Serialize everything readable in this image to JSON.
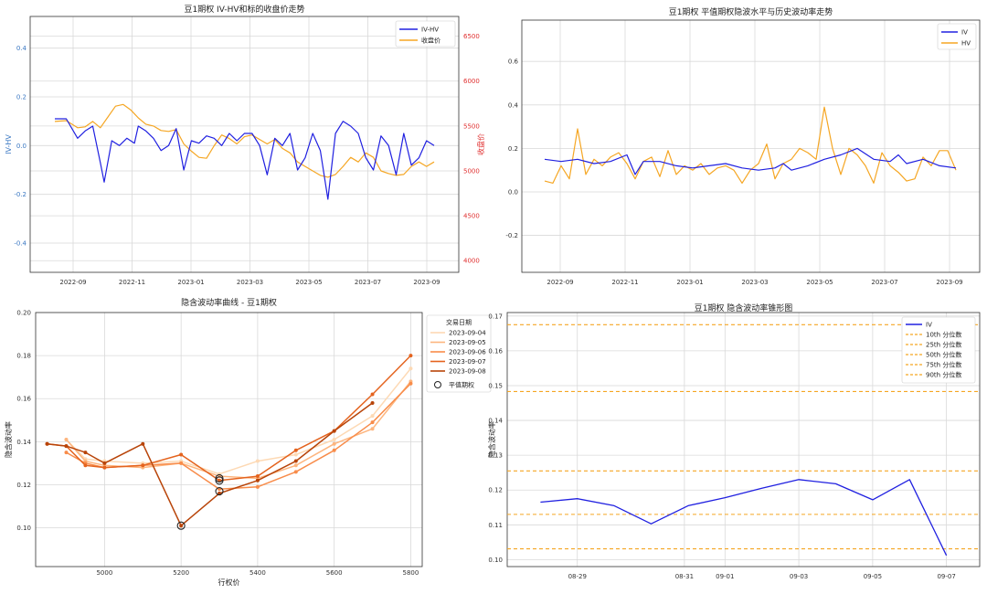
{
  "chart_data": [
    {
      "type": "line",
      "title": "豆1期权 IV-HV和标的收盘价走势",
      "ylabel": "IV-HV",
      "y2label": "收盘价",
      "ylim": [
        -0.52,
        0.53
      ],
      "y2lim": [
        3870,
        6720
      ],
      "yticks": [
        "0.4",
        "0.2",
        "0.0",
        "-0.2",
        "-0.4"
      ],
      "y2ticks": [
        "6500",
        "6000",
        "5500",
        "5000",
        "4500",
        "4000"
      ],
      "xticks": [
        "2022-09",
        "2022-11",
        "2023-01",
        "2023-03",
        "2023-05",
        "2023-07",
        "2023-09"
      ],
      "legend": [
        "IV-HV",
        "收盘价"
      ],
      "colors": {
        "ivhv": "#2020e0",
        "close": "#f5a623",
        "right_axis": "#e03030",
        "left_axis": "#3b78c3"
      },
      "series": [
        {
          "name": "IV-HV",
          "axis": "left",
          "x": [
            0,
            3,
            6,
            8,
            10,
            12,
            13,
            15,
            17,
            19,
            21,
            22,
            24,
            26,
            28,
            30,
            32,
            34,
            36,
            38,
            40,
            42,
            44,
            46,
            48,
            50,
            52,
            54,
            56,
            58,
            60,
            62,
            64,
            66,
            68,
            70,
            72,
            74,
            76,
            78,
            80,
            82,
            84,
            86,
            88,
            90,
            92,
            94,
            96,
            98,
            100
          ],
          "values": [
            0.11,
            0.11,
            0.03,
            0.06,
            0.08,
            -0.07,
            -0.15,
            0.02,
            0.0,
            0.03,
            0.01,
            0.08,
            0.06,
            0.03,
            -0.02,
            0.0,
            0.07,
            -0.1,
            0.02,
            0.01,
            0.04,
            0.03,
            0.0,
            0.05,
            0.02,
            0.05,
            0.05,
            0.0,
            -0.12,
            0.03,
            0.0,
            0.05,
            -0.1,
            -0.05,
            0.05,
            -0.02,
            -0.22,
            0.05,
            0.1,
            0.08,
            0.05,
            -0.05,
            -0.1,
            0.04,
            0.0,
            -0.12,
            0.05,
            -0.08,
            -0.05,
            0.02,
            0.0
          ]
        },
        {
          "name": "收盘价",
          "axis": "right",
          "x": [
            0,
            3,
            6,
            8,
            10,
            12,
            14,
            16,
            18,
            20,
            22,
            24,
            26,
            28,
            30,
            32,
            34,
            36,
            38,
            40,
            42,
            44,
            46,
            48,
            50,
            52,
            54,
            56,
            58,
            60,
            62,
            64,
            66,
            68,
            70,
            72,
            74,
            76,
            78,
            80,
            82,
            84,
            86,
            88,
            90,
            92,
            94,
            96,
            98,
            100
          ],
          "values": [
            5550,
            5560,
            5480,
            5490,
            5550,
            5480,
            5600,
            5720,
            5740,
            5680,
            5590,
            5520,
            5500,
            5450,
            5440,
            5460,
            5300,
            5220,
            5150,
            5140,
            5280,
            5400,
            5360,
            5300,
            5380,
            5400,
            5350,
            5300,
            5350,
            5250,
            5200,
            5100,
            5050,
            5000,
            4950,
            4930,
            4960,
            5050,
            5150,
            5100,
            5200,
            5150,
            5000,
            4970,
            4950,
            4960,
            5050,
            5100,
            5050,
            5100
          ]
        }
      ]
    },
    {
      "type": "line",
      "title": "豆1期权 平值期权隐波水平与历史波动率走势",
      "ylim": [
        -0.37,
        0.79
      ],
      "yticks": [
        "0.6",
        "0.4",
        "0.2",
        "0.0",
        "-0.2"
      ],
      "xticks": [
        "2022-09",
        "2022-11",
        "2023-01",
        "2023-03",
        "2023-05",
        "2023-07",
        "2023-09"
      ],
      "legend": [
        "IV",
        "HV"
      ],
      "colors": {
        "iv": "#2020e0",
        "hv": "#f5a623"
      },
      "series": [
        {
          "name": "IV",
          "x": [
            0,
            4,
            8,
            12,
            16,
            20,
            22,
            24,
            28,
            32,
            36,
            40,
            44,
            48,
            52,
            56,
            58,
            60,
            64,
            68,
            72,
            76,
            80,
            84,
            86,
            88,
            92,
            96,
            100
          ],
          "values": [
            0.15,
            0.14,
            0.15,
            0.13,
            0.14,
            0.17,
            0.08,
            0.14,
            0.14,
            0.12,
            0.11,
            0.12,
            0.13,
            0.11,
            0.1,
            0.11,
            0.13,
            0.1,
            0.12,
            0.15,
            0.17,
            0.2,
            0.15,
            0.14,
            0.17,
            0.13,
            0.15,
            0.12,
            0.11
          ]
        },
        {
          "name": "HV",
          "x": [
            0,
            2,
            4,
            6,
            8,
            10,
            12,
            14,
            16,
            18,
            20,
            22,
            24,
            26,
            28,
            30,
            32,
            34,
            36,
            38,
            40,
            42,
            44,
            46,
            48,
            50,
            52,
            54,
            56,
            58,
            60,
            62,
            64,
            66,
            68,
            70,
            72,
            74,
            76,
            78,
            80,
            82,
            84,
            86,
            88,
            90,
            92,
            94,
            96,
            98,
            100
          ],
          "values": [
            0.05,
            0.04,
            0.12,
            0.06,
            0.29,
            0.08,
            0.15,
            0.12,
            0.16,
            0.18,
            0.13,
            0.06,
            0.14,
            0.16,
            0.07,
            0.19,
            0.08,
            0.12,
            0.1,
            0.13,
            0.08,
            0.11,
            0.12,
            0.1,
            0.04,
            0.1,
            0.13,
            0.22,
            0.06,
            0.13,
            0.15,
            0.2,
            0.18,
            0.15,
            0.39,
            0.2,
            0.08,
            0.2,
            0.17,
            0.12,
            0.04,
            0.18,
            0.12,
            0.09,
            0.05,
            0.06,
            0.16,
            0.12,
            0.19,
            0.19,
            0.1
          ]
        }
      ]
    },
    {
      "type": "line",
      "title": "隐含波动率曲线 - 豆1期权",
      "xlabel": "行权价",
      "ylabel": "隐含波动率",
      "xlim": [
        4820,
        5830
      ],
      "ylim": [
        0.082,
        0.2
      ],
      "xticks": [
        5000,
        5200,
        5400,
        5600,
        5800
      ],
      "yticks": [
        "0.20",
        "0.18",
        "0.16",
        "0.14",
        "0.12",
        "0.10"
      ],
      "legend_title": "交易日期",
      "atm_label": "平值期权",
      "series": [
        {
          "name": "2023-09-04",
          "color": "#fdd9b4",
          "x": [
            4900,
            4950,
            5000,
            5100,
            5200,
            5300,
            5400,
            5500,
            5600,
            5700,
            5800
          ],
          "values": [
            0.141,
            0.132,
            0.131,
            0.13,
            0.131,
            0.125,
            0.131,
            0.134,
            0.141,
            0.152,
            0.174
          ]
        },
        {
          "name": "2023-09-05",
          "color": "#fdb57e",
          "x": [
            4900,
            4950,
            5000,
            5100,
            5200,
            5300,
            5400,
            5500,
            5600,
            5700,
            5800
          ],
          "values": [
            0.141,
            0.131,
            0.129,
            0.128,
            0.13,
            0.124,
            0.123,
            0.129,
            0.139,
            0.146,
            0.168
          ]
        },
        {
          "name": "2023-09-06",
          "color": "#f88c4a",
          "x": [
            4900,
            4950,
            5000,
            5100,
            5200,
            5300,
            5400,
            5500,
            5600,
            5700,
            5800
          ],
          "values": [
            0.135,
            0.13,
            0.128,
            0.129,
            0.13,
            0.118,
            0.119,
            0.126,
            0.136,
            0.149,
            0.167
          ]
        },
        {
          "name": "2023-09-07",
          "color": "#e4631e",
          "x": [
            4850,
            4900,
            4950,
            5000,
            5100,
            5200,
            5300,
            5400,
            5500,
            5600,
            5700,
            5800
          ],
          "values": [
            0.139,
            0.138,
            0.129,
            0.128,
            0.129,
            0.134,
            0.122,
            0.124,
            0.136,
            0.145,
            0.162,
            0.18
          ]
        },
        {
          "name": "2023-09-08",
          "color": "#b84409",
          "x": [
            4850,
            4900,
            4950,
            5000,
            5100,
            5200,
            5300,
            5400,
            5500,
            5600,
            5700
          ],
          "values": [
            0.139,
            0.138,
            0.135,
            0.13,
            0.139,
            0.101,
            0.116,
            0.122,
            0.131,
            0.145,
            0.158
          ]
        }
      ],
      "atm_points": [
        {
          "x": 5300,
          "y": 0.123
        },
        {
          "x": 5300,
          "y": 0.122
        },
        {
          "x": 5300,
          "y": 0.117
        },
        {
          "x": 5200,
          "y": 0.101
        }
      ]
    },
    {
      "type": "line",
      "title": "豆1期权 隐含波动率锥形图",
      "ylabel": "隐含波动率",
      "xlim": [
        -0.9,
        11.9
      ],
      "ylim": [
        0.098,
        0.171
      ],
      "xticks": [
        {
          "pos": 1,
          "label": "08-29"
        },
        {
          "pos": 3.9,
          "label": "08-31"
        },
        {
          "pos": 5,
          "label": "09-01"
        },
        {
          "pos": 7,
          "label": "09-03"
        },
        {
          "pos": 9,
          "label": "09-05"
        },
        {
          "pos": 11,
          "label": "09-07"
        }
      ],
      "yticks": [
        "0.17",
        "0.16",
        "0.15",
        "0.14",
        "0.13",
        "0.12",
        "0.11",
        "0.10"
      ],
      "series": [
        {
          "name": "IV",
          "color": "#2020e0",
          "x": [
            0,
            1,
            2,
            3,
            4,
            5,
            6,
            7,
            8,
            9,
            10,
            11
          ],
          "values": [
            0.1165,
            0.1175,
            0.1155,
            0.1103,
            0.1155,
            0.1178,
            0.1205,
            0.123,
            0.1218,
            0.1172,
            0.123,
            0.1012
          ]
        }
      ],
      "percentiles": [
        {
          "name": "10th 分位数",
          "value": 0.1031
        },
        {
          "name": "25th 分位数",
          "value": 0.113
        },
        {
          "name": "50th 分位数",
          "value": 0.1255
        },
        {
          "name": "75th 分位数",
          "value": 0.1483
        },
        {
          "name": "90th 分位数",
          "value": 0.1675
        }
      ],
      "percentile_color": "#f5a623"
    }
  ]
}
